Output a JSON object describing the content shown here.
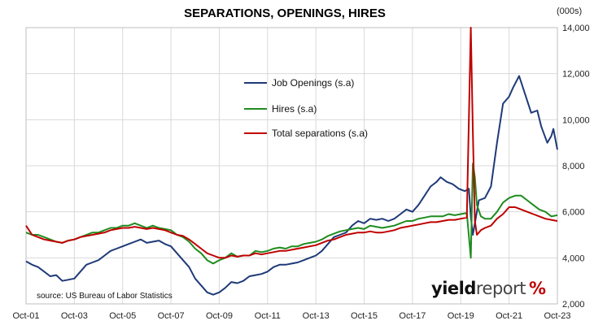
{
  "chart_data": {
    "type": "line",
    "title": "SEPARATIONS, OPENINGS, HIRES",
    "unit": "(000s)",
    "source": "source: US Bureau of Labor Statistics",
    "brand": {
      "word1": "yield",
      "word2": "report",
      "symbol": "%"
    },
    "x_tick_labels": [
      "Oct-01",
      "Oct-03",
      "Oct-05",
      "Oct-07",
      "Oct-09",
      "Oct-11",
      "Oct-13",
      "Oct-15",
      "Oct-17",
      "Oct-19",
      "Oct-21",
      "Oct-23"
    ],
    "y_tick_labels": [
      "2,000",
      "4,000",
      "6,000",
      "8,000",
      "10,000",
      "12,000",
      "14,000"
    ],
    "x_range": [
      "2001-10",
      "2023-10"
    ],
    "ylim": [
      2000,
      14000
    ],
    "grid": true,
    "y_axis_side": "right",
    "legend_position": "upper-center",
    "series": [
      {
        "name": "Job Openings (s.a)",
        "color": "#1f3a78",
        "points": [
          [
            "2001-10",
            3850
          ],
          [
            "2002-01",
            3700
          ],
          [
            "2002-04",
            3600
          ],
          [
            "2002-07",
            3400
          ],
          [
            "2002-10",
            3200
          ],
          [
            "2003-01",
            3250
          ],
          [
            "2003-04",
            3000
          ],
          [
            "2003-07",
            3050
          ],
          [
            "2003-10",
            3100
          ],
          [
            "2004-01",
            3400
          ],
          [
            "2004-04",
            3700
          ],
          [
            "2004-07",
            3800
          ],
          [
            "2004-10",
            3900
          ],
          [
            "2005-01",
            4100
          ],
          [
            "2005-04",
            4300
          ],
          [
            "2005-07",
            4400
          ],
          [
            "2005-10",
            4500
          ],
          [
            "2006-01",
            4600
          ],
          [
            "2006-04",
            4700
          ],
          [
            "2006-07",
            4800
          ],
          [
            "2006-10",
            4650
          ],
          [
            "2007-01",
            4700
          ],
          [
            "2007-04",
            4750
          ],
          [
            "2007-07",
            4600
          ],
          [
            "2007-10",
            4500
          ],
          [
            "2008-01",
            4200
          ],
          [
            "2008-04",
            3900
          ],
          [
            "2008-07",
            3600
          ],
          [
            "2008-10",
            3100
          ],
          [
            "2009-01",
            2800
          ],
          [
            "2009-04",
            2500
          ],
          [
            "2009-07",
            2400
          ],
          [
            "2009-10",
            2500
          ],
          [
            "2010-01",
            2700
          ],
          [
            "2010-04",
            2950
          ],
          [
            "2010-07",
            2900
          ],
          [
            "2010-10",
            3000
          ],
          [
            "2011-01",
            3200
          ],
          [
            "2011-04",
            3250
          ],
          [
            "2011-07",
            3300
          ],
          [
            "2011-10",
            3400
          ],
          [
            "2012-01",
            3600
          ],
          [
            "2012-04",
            3700
          ],
          [
            "2012-07",
            3700
          ],
          [
            "2012-10",
            3750
          ],
          [
            "2013-01",
            3800
          ],
          [
            "2013-04",
            3900
          ],
          [
            "2013-07",
            4000
          ],
          [
            "2013-10",
            4100
          ],
          [
            "2014-01",
            4300
          ],
          [
            "2014-04",
            4600
          ],
          [
            "2014-07",
            4900
          ],
          [
            "2014-10",
            5000
          ],
          [
            "2015-01",
            5100
          ],
          [
            "2015-04",
            5400
          ],
          [
            "2015-07",
            5600
          ],
          [
            "2015-10",
            5500
          ],
          [
            "2016-01",
            5700
          ],
          [
            "2016-04",
            5650
          ],
          [
            "2016-07",
            5700
          ],
          [
            "2016-10",
            5600
          ],
          [
            "2017-01",
            5700
          ],
          [
            "2017-04",
            5900
          ],
          [
            "2017-07",
            6100
          ],
          [
            "2017-10",
            6000
          ],
          [
            "2018-01",
            6300
          ],
          [
            "2018-04",
            6700
          ],
          [
            "2018-07",
            7100
          ],
          [
            "2018-10",
            7300
          ],
          [
            "2018-12",
            7500
          ],
          [
            "2019-03",
            7300
          ],
          [
            "2019-06",
            7200
          ],
          [
            "2019-09",
            7000
          ],
          [
            "2019-12",
            6900
          ],
          [
            "2020-02",
            7000
          ],
          [
            "2020-03",
            5800
          ],
          [
            "2020-04",
            5000
          ],
          [
            "2020-05",
            5500
          ],
          [
            "2020-07",
            6500
          ],
          [
            "2020-10",
            6600
          ],
          [
            "2021-01",
            7100
          ],
          [
            "2021-04",
            9000
          ],
          [
            "2021-07",
            10700
          ],
          [
            "2021-10",
            11000
          ],
          [
            "2021-12",
            11400
          ],
          [
            "2022-03",
            11900
          ],
          [
            "2022-06",
            11100
          ],
          [
            "2022-09",
            10300
          ],
          [
            "2022-12",
            10400
          ],
          [
            "2023-02",
            9700
          ],
          [
            "2023-05",
            9000
          ],
          [
            "2023-07",
            9300
          ],
          [
            "2023-08",
            9600
          ],
          [
            "2023-10",
            8700
          ]
        ]
      },
      {
        "name": "Hires (s.a)",
        "color": "#1f8c1f",
        "points": [
          [
            "2001-10",
            5100
          ],
          [
            "2002-01",
            5000
          ],
          [
            "2002-04",
            5000
          ],
          [
            "2002-07",
            4900
          ],
          [
            "2002-10",
            4800
          ],
          [
            "2003-01",
            4700
          ],
          [
            "2003-04",
            4650
          ],
          [
            "2003-07",
            4750
          ],
          [
            "2003-10",
            4800
          ],
          [
            "2004-01",
            4900
          ],
          [
            "2004-04",
            5000
          ],
          [
            "2004-07",
            5100
          ],
          [
            "2004-10",
            5100
          ],
          [
            "2005-01",
            5200
          ],
          [
            "2005-04",
            5300
          ],
          [
            "2005-07",
            5300
          ],
          [
            "2005-10",
            5400
          ],
          [
            "2006-01",
            5400
          ],
          [
            "2006-04",
            5500
          ],
          [
            "2006-07",
            5400
          ],
          [
            "2006-10",
            5300
          ],
          [
            "2007-01",
            5400
          ],
          [
            "2007-04",
            5300
          ],
          [
            "2007-07",
            5250
          ],
          [
            "2007-10",
            5200
          ],
          [
            "2008-01",
            5000
          ],
          [
            "2008-04",
            4900
          ],
          [
            "2008-07",
            4700
          ],
          [
            "2008-10",
            4400
          ],
          [
            "2009-01",
            4200
          ],
          [
            "2009-04",
            3900
          ],
          [
            "2009-07",
            3750
          ],
          [
            "2009-10",
            3900
          ],
          [
            "2010-01",
            4000
          ],
          [
            "2010-04",
            4200
          ],
          [
            "2010-07",
            4050
          ],
          [
            "2010-10",
            4100
          ],
          [
            "2011-01",
            4100
          ],
          [
            "2011-04",
            4300
          ],
          [
            "2011-07",
            4250
          ],
          [
            "2011-10",
            4300
          ],
          [
            "2012-01",
            4400
          ],
          [
            "2012-04",
            4450
          ],
          [
            "2012-07",
            4400
          ],
          [
            "2012-10",
            4500
          ],
          [
            "2013-01",
            4500
          ],
          [
            "2013-04",
            4600
          ],
          [
            "2013-07",
            4650
          ],
          [
            "2013-10",
            4700
          ],
          [
            "2014-01",
            4800
          ],
          [
            "2014-04",
            4950
          ],
          [
            "2014-07",
            5050
          ],
          [
            "2014-10",
            5150
          ],
          [
            "2015-01",
            5200
          ],
          [
            "2015-04",
            5250
          ],
          [
            "2015-07",
            5300
          ],
          [
            "2015-10",
            5250
          ],
          [
            "2016-01",
            5400
          ],
          [
            "2016-04",
            5350
          ],
          [
            "2016-07",
            5300
          ],
          [
            "2016-10",
            5350
          ],
          [
            "2017-01",
            5400
          ],
          [
            "2017-04",
            5500
          ],
          [
            "2017-07",
            5600
          ],
          [
            "2017-10",
            5600
          ],
          [
            "2018-01",
            5700
          ],
          [
            "2018-04",
            5750
          ],
          [
            "2018-07",
            5800
          ],
          [
            "2018-10",
            5800
          ],
          [
            "2019-01",
            5800
          ],
          [
            "2019-04",
            5900
          ],
          [
            "2019-07",
            5850
          ],
          [
            "2019-10",
            5900
          ],
          [
            "2020-01",
            5950
          ],
          [
            "2020-03",
            4000
          ],
          [
            "2020-04",
            8100
          ],
          [
            "2020-05",
            7500
          ],
          [
            "2020-06",
            6300
          ],
          [
            "2020-08",
            5800
          ],
          [
            "2020-10",
            5700
          ],
          [
            "2021-01",
            5700
          ],
          [
            "2021-04",
            6000
          ],
          [
            "2021-07",
            6400
          ],
          [
            "2021-10",
            6600
          ],
          [
            "2022-01",
            6700
          ],
          [
            "2022-04",
            6700
          ],
          [
            "2022-07",
            6500
          ],
          [
            "2022-10",
            6300
          ],
          [
            "2023-01",
            6100
          ],
          [
            "2023-04",
            6000
          ],
          [
            "2023-07",
            5800
          ],
          [
            "2023-10",
            5850
          ]
        ]
      },
      {
        "name": "Total separations (s.a)",
        "color": "#c00000",
        "points": [
          [
            "2001-10",
            5400
          ],
          [
            "2002-01",
            5000
          ],
          [
            "2002-04",
            4900
          ],
          [
            "2002-07",
            4800
          ],
          [
            "2002-10",
            4750
          ],
          [
            "2003-01",
            4700
          ],
          [
            "2003-04",
            4650
          ],
          [
            "2003-07",
            4750
          ],
          [
            "2003-10",
            4800
          ],
          [
            "2004-01",
            4900
          ],
          [
            "2004-04",
            4950
          ],
          [
            "2004-07",
            5000
          ],
          [
            "2004-10",
            5050
          ],
          [
            "2005-01",
            5100
          ],
          [
            "2005-04",
            5200
          ],
          [
            "2005-07",
            5250
          ],
          [
            "2005-10",
            5300
          ],
          [
            "2006-01",
            5300
          ],
          [
            "2006-04",
            5350
          ],
          [
            "2006-07",
            5300
          ],
          [
            "2006-10",
            5250
          ],
          [
            "2007-01",
            5300
          ],
          [
            "2007-04",
            5250
          ],
          [
            "2007-07",
            5200
          ],
          [
            "2007-10",
            5100
          ],
          [
            "2008-01",
            5000
          ],
          [
            "2008-04",
            4950
          ],
          [
            "2008-07",
            4800
          ],
          [
            "2008-10",
            4600
          ],
          [
            "2009-01",
            4400
          ],
          [
            "2009-04",
            4200
          ],
          [
            "2009-07",
            4100
          ],
          [
            "2009-10",
            4000
          ],
          [
            "2010-01",
            4000
          ],
          [
            "2010-04",
            4100
          ],
          [
            "2010-07",
            4050
          ],
          [
            "2010-10",
            4100
          ],
          [
            "2011-01",
            4100
          ],
          [
            "2011-04",
            4200
          ],
          [
            "2011-07",
            4150
          ],
          [
            "2011-10",
            4200
          ],
          [
            "2012-01",
            4250
          ],
          [
            "2012-04",
            4300
          ],
          [
            "2012-07",
            4300
          ],
          [
            "2012-10",
            4350
          ],
          [
            "2013-01",
            4400
          ],
          [
            "2013-04",
            4450
          ],
          [
            "2013-07",
            4500
          ],
          [
            "2013-10",
            4550
          ],
          [
            "2014-01",
            4650
          ],
          [
            "2014-04",
            4750
          ],
          [
            "2014-07",
            4800
          ],
          [
            "2014-10",
            4900
          ],
          [
            "2015-01",
            5000
          ],
          [
            "2015-04",
            5050
          ],
          [
            "2015-07",
            5100
          ],
          [
            "2015-10",
            5100
          ],
          [
            "2016-01",
            5150
          ],
          [
            "2016-04",
            5100
          ],
          [
            "2016-07",
            5100
          ],
          [
            "2016-10",
            5150
          ],
          [
            "2017-01",
            5200
          ],
          [
            "2017-04",
            5300
          ],
          [
            "2017-07",
            5350
          ],
          [
            "2017-10",
            5400
          ],
          [
            "2018-01",
            5450
          ],
          [
            "2018-04",
            5500
          ],
          [
            "2018-07",
            5550
          ],
          [
            "2018-10",
            5550
          ],
          [
            "2019-01",
            5600
          ],
          [
            "2019-04",
            5650
          ],
          [
            "2019-07",
            5650
          ],
          [
            "2019-10",
            5700
          ],
          [
            "2020-01",
            5750
          ],
          [
            "2020-03",
            14000
          ],
          [
            "2020-04",
            9500
          ],
          [
            "2020-05",
            5600
          ],
          [
            "2020-06",
            5000
          ],
          [
            "2020-08",
            5200
          ],
          [
            "2020-10",
            5300
          ],
          [
            "2021-01",
            5400
          ],
          [
            "2021-04",
            5700
          ],
          [
            "2021-07",
            5900
          ],
          [
            "2021-10",
            6200
          ],
          [
            "2022-01",
            6200
          ],
          [
            "2022-04",
            6100
          ],
          [
            "2022-07",
            6000
          ],
          [
            "2022-10",
            5900
          ],
          [
            "2023-01",
            5800
          ],
          [
            "2023-04",
            5700
          ],
          [
            "2023-07",
            5650
          ],
          [
            "2023-10",
            5600
          ]
        ]
      }
    ]
  }
}
